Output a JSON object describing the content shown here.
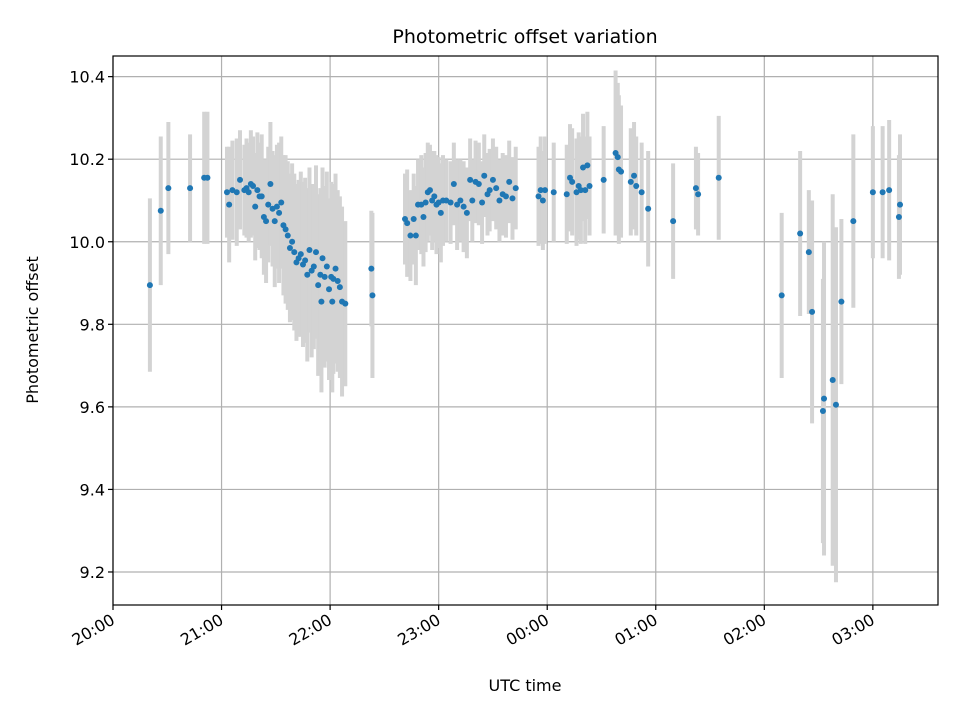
{
  "chart_data": {
    "type": "scatter",
    "title": "Photometric offset variation",
    "xlabel": "UTC time",
    "ylabel": "Photometric offset",
    "x_unit": "hours_since_20:00",
    "xlim": [
      0.0,
      7.6
    ],
    "ylim": [
      9.12,
      10.45
    ],
    "x_ticks": [
      {
        "value": 0,
        "label": "20:00"
      },
      {
        "value": 1,
        "label": "21:00"
      },
      {
        "value": 2,
        "label": "22:00"
      },
      {
        "value": 3,
        "label": "23:00"
      },
      {
        "value": 4,
        "label": "00:00"
      },
      {
        "value": 5,
        "label": "01:00"
      },
      {
        "value": 6,
        "label": "02:00"
      },
      {
        "value": 7,
        "label": "03:00"
      }
    ],
    "y_ticks": [
      {
        "value": 9.2,
        "label": "9.2"
      },
      {
        "value": 9.4,
        "label": "9.4"
      },
      {
        "value": 9.6,
        "label": "9.6"
      },
      {
        "value": 9.8,
        "label": "9.8"
      },
      {
        "value": 10.0,
        "label": "10.0"
      },
      {
        "value": 10.2,
        "label": "10.2"
      },
      {
        "value": 10.4,
        "label": "10.4"
      }
    ],
    "grid": true,
    "colors": {
      "point": "#1f77b4",
      "errorbar": "#d3d3d3",
      "grid": "#b0b0b0"
    },
    "series": [
      {
        "points": [
          {
            "x": 0.34,
            "y": 9.895,
            "err": 0.21
          },
          {
            "x": 0.44,
            "y": 10.075,
            "err": 0.18
          },
          {
            "x": 0.51,
            "y": 10.13,
            "err": 0.16
          },
          {
            "x": 0.71,
            "y": 10.13,
            "err": 0.13
          },
          {
            "x": 0.84,
            "y": 10.155,
            "err": 0.16
          },
          {
            "x": 0.87,
            "y": 10.155,
            "err": 0.16
          },
          {
            "x": 1.05,
            "y": 10.12,
            "err": 0.11
          },
          {
            "x": 1.07,
            "y": 10.09,
            "err": 0.14
          },
          {
            "x": 1.1,
            "y": 10.125,
            "err": 0.12
          },
          {
            "x": 1.14,
            "y": 10.12,
            "err": 0.13
          },
          {
            "x": 1.17,
            "y": 10.15,
            "err": 0.12
          },
          {
            "x": 1.21,
            "y": 10.125,
            "err": 0.11
          },
          {
            "x": 1.23,
            "y": 10.13,
            "err": 0.12
          },
          {
            "x": 1.25,
            "y": 10.12,
            "err": 0.12
          },
          {
            "x": 1.27,
            "y": 10.14,
            "err": 0.13
          },
          {
            "x": 1.29,
            "y": 10.135,
            "err": 0.12
          },
          {
            "x": 1.31,
            "y": 10.085,
            "err": 0.13
          },
          {
            "x": 1.33,
            "y": 10.125,
            "err": 0.14
          },
          {
            "x": 1.35,
            "y": 10.11,
            "err": 0.13
          },
          {
            "x": 1.37,
            "y": 10.11,
            "err": 0.15
          },
          {
            "x": 1.39,
            "y": 10.06,
            "err": 0.14
          },
          {
            "x": 1.41,
            "y": 10.05,
            "err": 0.15
          },
          {
            "x": 1.43,
            "y": 10.09,
            "err": 0.14
          },
          {
            "x": 1.45,
            "y": 10.14,
            "err": 0.15
          },
          {
            "x": 1.47,
            "y": 10.08,
            "err": 0.14
          },
          {
            "x": 1.49,
            "y": 10.05,
            "err": 0.16
          },
          {
            "x": 1.51,
            "y": 10.085,
            "err": 0.15
          },
          {
            "x": 1.53,
            "y": 10.07,
            "err": 0.17
          },
          {
            "x": 1.55,
            "y": 10.095,
            "err": 0.16
          },
          {
            "x": 1.57,
            "y": 10.04,
            "err": 0.17
          },
          {
            "x": 1.59,
            "y": 10.03,
            "err": 0.18
          },
          {
            "x": 1.61,
            "y": 10.015,
            "err": 0.18
          },
          {
            "x": 1.63,
            "y": 9.985,
            "err": 0.18
          },
          {
            "x": 1.65,
            "y": 10.0,
            "err": 0.19
          },
          {
            "x": 1.67,
            "y": 9.975,
            "err": 0.19
          },
          {
            "x": 1.69,
            "y": 9.95,
            "err": 0.19
          },
          {
            "x": 1.71,
            "y": 9.96,
            "err": 0.19
          },
          {
            "x": 1.73,
            "y": 9.97,
            "err": 0.2
          },
          {
            "x": 1.75,
            "y": 9.945,
            "err": 0.2
          },
          {
            "x": 1.77,
            "y": 9.955,
            "err": 0.2
          },
          {
            "x": 1.79,
            "y": 9.92,
            "err": 0.21
          },
          {
            "x": 1.81,
            "y": 9.98,
            "err": 0.2
          },
          {
            "x": 1.83,
            "y": 9.93,
            "err": 0.21
          },
          {
            "x": 1.85,
            "y": 9.94,
            "err": 0.2
          },
          {
            "x": 1.87,
            "y": 9.975,
            "err": 0.21
          },
          {
            "x": 1.89,
            "y": 9.895,
            "err": 0.22
          },
          {
            "x": 1.91,
            "y": 9.92,
            "err": 0.21
          },
          {
            "x": 1.93,
            "y": 9.96,
            "err": 0.22
          },
          {
            "x": 1.95,
            "y": 9.915,
            "err": 0.22
          },
          {
            "x": 1.97,
            "y": 9.94,
            "err": 0.23
          },
          {
            "x": 1.99,
            "y": 9.885,
            "err": 0.22
          },
          {
            "x": 2.01,
            "y": 9.915,
            "err": 0.23
          },
          {
            "x": 2.03,
            "y": 9.91,
            "err": 0.23
          },
          {
            "x": 2.05,
            "y": 9.935,
            "err": 0.23
          },
          {
            "x": 2.07,
            "y": 9.905,
            "err": 0.22
          },
          {
            "x": 2.09,
            "y": 9.89,
            "err": 0.22
          },
          {
            "x": 2.11,
            "y": 9.855,
            "err": 0.23
          },
          {
            "x": 2.14,
            "y": 9.85,
            "err": 0.2
          },
          {
            "x": 1.92,
            "y": 9.855,
            "err": 0.22
          },
          {
            "x": 2.02,
            "y": 9.855,
            "err": 0.22
          },
          {
            "x": 2.38,
            "y": 9.935,
            "err": 0.14
          },
          {
            "x": 2.39,
            "y": 9.87,
            "err": 0.2
          },
          {
            "x": 2.69,
            "y": 10.055,
            "err": 0.11
          },
          {
            "x": 2.71,
            "y": 10.045,
            "err": 0.13
          },
          {
            "x": 2.74,
            "y": 10.015,
            "err": 0.11
          },
          {
            "x": 2.77,
            "y": 10.055,
            "err": 0.11
          },
          {
            "x": 2.79,
            "y": 10.015,
            "err": 0.12
          },
          {
            "x": 2.81,
            "y": 10.09,
            "err": 0.11
          },
          {
            "x": 2.84,
            "y": 10.09,
            "err": 0.12
          },
          {
            "x": 2.86,
            "y": 10.06,
            "err": 0.12
          },
          {
            "x": 2.88,
            "y": 10.095,
            "err": 0.12
          },
          {
            "x": 2.9,
            "y": 10.12,
            "err": 0.12
          },
          {
            "x": 2.92,
            "y": 10.125,
            "err": 0.11
          },
          {
            "x": 2.94,
            "y": 10.1,
            "err": 0.12
          },
          {
            "x": 2.96,
            "y": 10.11,
            "err": 0.11
          },
          {
            "x": 2.98,
            "y": 10.09,
            "err": 0.12
          },
          {
            "x": 3.0,
            "y": 10.095,
            "err": 0.11
          },
          {
            "x": 3.02,
            "y": 10.07,
            "err": 0.12
          },
          {
            "x": 3.04,
            "y": 10.1,
            "err": 0.11
          },
          {
            "x": 3.07,
            "y": 10.1,
            "err": 0.1
          },
          {
            "x": 3.11,
            "y": 10.095,
            "err": 0.1
          },
          {
            "x": 3.14,
            "y": 10.14,
            "err": 0.1
          },
          {
            "x": 3.17,
            "y": 10.09,
            "err": 0.11
          },
          {
            "x": 3.2,
            "y": 10.1,
            "err": 0.1
          },
          {
            "x": 3.23,
            "y": 10.085,
            "err": 0.11
          },
          {
            "x": 3.26,
            "y": 10.07,
            "err": 0.11
          },
          {
            "x": 3.29,
            "y": 10.15,
            "err": 0.1
          },
          {
            "x": 3.31,
            "y": 10.1,
            "err": 0.1
          },
          {
            "x": 3.34,
            "y": 10.145,
            "err": 0.1
          },
          {
            "x": 3.37,
            "y": 10.14,
            "err": 0.1
          },
          {
            "x": 3.4,
            "y": 10.095,
            "err": 0.1
          },
          {
            "x": 3.42,
            "y": 10.16,
            "err": 0.1
          },
          {
            "x": 3.45,
            "y": 10.115,
            "err": 0.1
          },
          {
            "x": 3.47,
            "y": 10.125,
            "err": 0.1
          },
          {
            "x": 3.5,
            "y": 10.15,
            "err": 0.1
          },
          {
            "x": 3.53,
            "y": 10.13,
            "err": 0.1
          },
          {
            "x": 3.56,
            "y": 10.1,
            "err": 0.1
          },
          {
            "x": 3.59,
            "y": 10.115,
            "err": 0.1
          },
          {
            "x": 3.62,
            "y": 10.11,
            "err": 0.1
          },
          {
            "x": 3.65,
            "y": 10.145,
            "err": 0.1
          },
          {
            "x": 3.68,
            "y": 10.105,
            "err": 0.1
          },
          {
            "x": 3.71,
            "y": 10.13,
            "err": 0.1
          },
          {
            "x": 3.92,
            "y": 10.11,
            "err": 0.12
          },
          {
            "x": 3.94,
            "y": 10.125,
            "err": 0.13
          },
          {
            "x": 3.96,
            "y": 10.1,
            "err": 0.12
          },
          {
            "x": 3.98,
            "y": 10.125,
            "err": 0.13
          },
          {
            "x": 4.06,
            "y": 10.12,
            "err": 0.12
          },
          {
            "x": 4.18,
            "y": 10.115,
            "err": 0.12
          },
          {
            "x": 4.21,
            "y": 10.155,
            "err": 0.13
          },
          {
            "x": 4.23,
            "y": 10.145,
            "err": 0.13
          },
          {
            "x": 4.27,
            "y": 10.12,
            "err": 0.13
          },
          {
            "x": 4.29,
            "y": 10.135,
            "err": 0.13
          },
          {
            "x": 4.31,
            "y": 10.125,
            "err": 0.13
          },
          {
            "x": 4.33,
            "y": 10.18,
            "err": 0.13
          },
          {
            "x": 4.35,
            "y": 10.125,
            "err": 0.13
          },
          {
            "x": 4.37,
            "y": 10.185,
            "err": 0.13
          },
          {
            "x": 4.39,
            "y": 10.135,
            "err": 0.12
          },
          {
            "x": 4.52,
            "y": 10.15,
            "err": 0.13
          },
          {
            "x": 4.63,
            "y": 10.215,
            "err": 0.2
          },
          {
            "x": 4.65,
            "y": 10.205,
            "err": 0.18
          },
          {
            "x": 4.66,
            "y": 10.175,
            "err": 0.18
          },
          {
            "x": 4.68,
            "y": 10.17,
            "err": 0.16
          },
          {
            "x": 4.77,
            "y": 10.145,
            "err": 0.13
          },
          {
            "x": 4.8,
            "y": 10.16,
            "err": 0.13
          },
          {
            "x": 4.82,
            "y": 10.135,
            "err": 0.12
          },
          {
            "x": 4.87,
            "y": 10.12,
            "err": 0.12
          },
          {
            "x": 4.93,
            "y": 10.08,
            "err": 0.14
          },
          {
            "x": 5.16,
            "y": 10.05,
            "err": 0.14
          },
          {
            "x": 5.37,
            "y": 10.13,
            "err": 0.1
          },
          {
            "x": 5.39,
            "y": 10.115,
            "err": 0.1
          },
          {
            "x": 5.58,
            "y": 10.155,
            "err": 0.15
          },
          {
            "x": 6.16,
            "y": 9.87,
            "err": 0.2
          },
          {
            "x": 6.33,
            "y": 10.02,
            "err": 0.2
          },
          {
            "x": 6.41,
            "y": 9.975,
            "err": 0.15
          },
          {
            "x": 6.44,
            "y": 9.83,
            "err": 0.27
          },
          {
            "x": 6.54,
            "y": 9.59,
            "err": 0.32
          },
          {
            "x": 6.55,
            "y": 9.62,
            "err": 0.38
          },
          {
            "x": 6.63,
            "y": 9.665,
            "err": 0.45
          },
          {
            "x": 6.66,
            "y": 9.605,
            "err": 0.43
          },
          {
            "x": 6.71,
            "y": 9.855,
            "err": 0.2
          },
          {
            "x": 6.82,
            "y": 10.05,
            "err": 0.21
          },
          {
            "x": 7.0,
            "y": 10.12,
            "err": 0.16
          },
          {
            "x": 7.09,
            "y": 10.12,
            "err": 0.16
          },
          {
            "x": 7.15,
            "y": 10.125,
            "err": 0.17
          },
          {
            "x": 7.24,
            "y": 10.06,
            "err": 0.15
          },
          {
            "x": 7.25,
            "y": 10.09,
            "err": 0.17
          }
        ]
      }
    ]
  }
}
